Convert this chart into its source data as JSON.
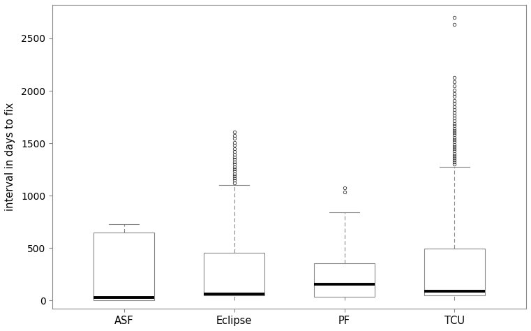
{
  "groups": [
    "ASF",
    "Eclipse",
    "PF",
    "TCU"
  ],
  "ylabel": "interval in days to fix",
  "ylim": [
    -80,
    2820
  ],
  "yticks": [
    0,
    500,
    1000,
    1500,
    2000,
    2500
  ],
  "background_color": "#ffffff",
  "boxes": [
    {
      "label": "ASF",
      "q1": 5,
      "median": 28,
      "q3": 645,
      "whisker_low": 0,
      "whisker_high": 730,
      "outliers": []
    },
    {
      "label": "Eclipse",
      "q1": 50,
      "median": 65,
      "q3": 455,
      "whisker_low": 0,
      "whisker_high": 1100,
      "outliers": [
        1120,
        1145,
        1165,
        1185,
        1210,
        1235,
        1255,
        1275,
        1300,
        1320,
        1345,
        1370,
        1395,
        1420,
        1450,
        1480,
        1510,
        1545,
        1575,
        1610
      ]
    },
    {
      "label": "PF",
      "q1": 38,
      "median": 155,
      "q3": 355,
      "whisker_low": 0,
      "whisker_high": 840,
      "outliers": [
        1035,
        1075
      ]
    },
    {
      "label": "TCU",
      "q1": 50,
      "median": 90,
      "q3": 495,
      "whisker_low": 0,
      "whisker_high": 1275,
      "outliers": [
        1300,
        1320,
        1340,
        1360,
        1382,
        1404,
        1425,
        1447,
        1468,
        1490,
        1512,
        1534,
        1556,
        1578,
        1600,
        1622,
        1644,
        1666,
        1690,
        1715,
        1740,
        1765,
        1793,
        1820,
        1850,
        1880,
        1910,
        1945,
        1975,
        2010,
        2050,
        2090,
        2130,
        2630,
        2700
      ]
    }
  ]
}
